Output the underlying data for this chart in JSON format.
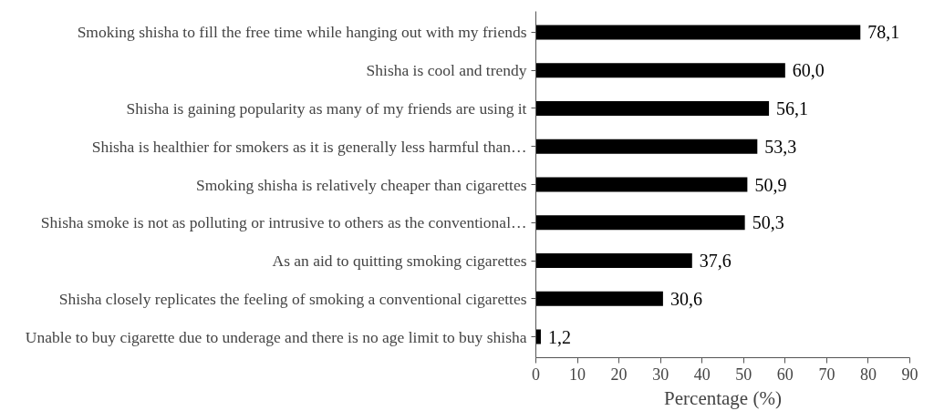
{
  "chart_data": {
    "type": "bar",
    "orientation": "horizontal",
    "categories": [
      "Smoking shisha to fill the free time while hanging out with my friends",
      "Shisha is cool and trendy",
      "Shisha is gaining popularity as many of my friends are using it",
      "Shisha is healthier for smokers as it is generally less harmful than…",
      "Smoking shisha is relatively cheaper than cigarettes",
      "Shisha smoke is not as polluting or intrusive to others as the conventional…",
      "As an aid to quitting smoking cigarettes",
      "Shisha closely replicates the feeling of smoking a conventional cigarettes",
      "Unable to buy cigarette due to underage and there is no age limit to buy shisha"
    ],
    "values": [
      78.1,
      60.0,
      56.1,
      53.3,
      50.9,
      50.3,
      37.6,
      30.6,
      1.2
    ],
    "value_labels": [
      "78,1",
      "60,0",
      "56,1",
      "53,3",
      "50,9",
      "50,3",
      "37,6",
      "30,6",
      "1,2"
    ],
    "color": "#000000",
    "xlabel": "Percentage (%)",
    "xlim": [
      0,
      90
    ],
    "xticks": [
      0,
      10,
      20,
      30,
      40,
      50,
      60,
      70,
      80,
      90
    ],
    "grid": false
  }
}
